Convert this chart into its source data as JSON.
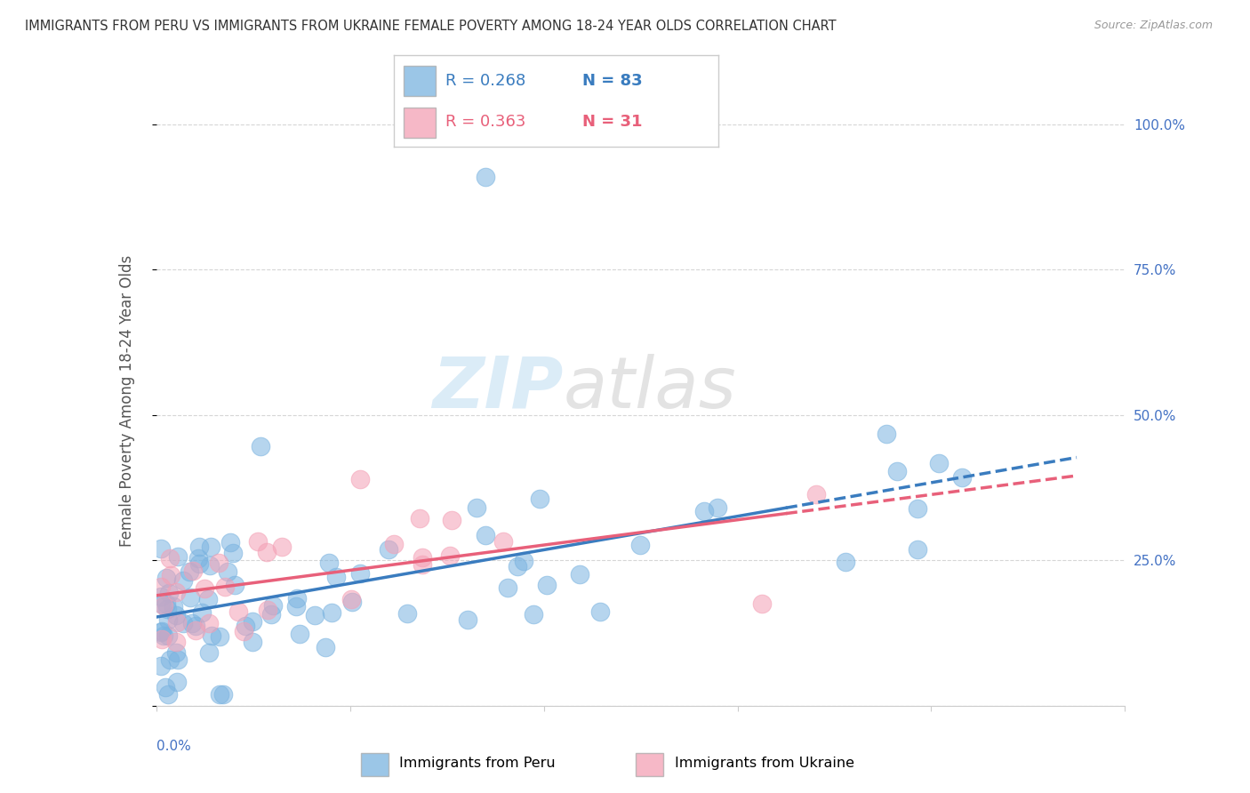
{
  "title": "IMMIGRANTS FROM PERU VS IMMIGRANTS FROM UKRAINE FEMALE POVERTY AMONG 18-24 YEAR OLDS CORRELATION CHART",
  "source": "Source: ZipAtlas.com",
  "ylabel": "Female Poverty Among 18-24 Year Olds",
  "xlim": [
    0.0,
    0.2
  ],
  "ylim": [
    0.0,
    1.05
  ],
  "peru_color": "#7ab3e0",
  "ukraine_color": "#f4a0b5",
  "peru_line_color": "#3a7cbf",
  "ukraine_line_color": "#e8607a",
  "legend_peru_R": "R = 0.268",
  "legend_peru_N": "N = 83",
  "legend_ukraine_R": "R = 0.363",
  "legend_ukraine_N": "N = 31",
  "watermark_zip": "ZIP",
  "watermark_atlas": "atlas",
  "background_color": "#ffffff"
}
